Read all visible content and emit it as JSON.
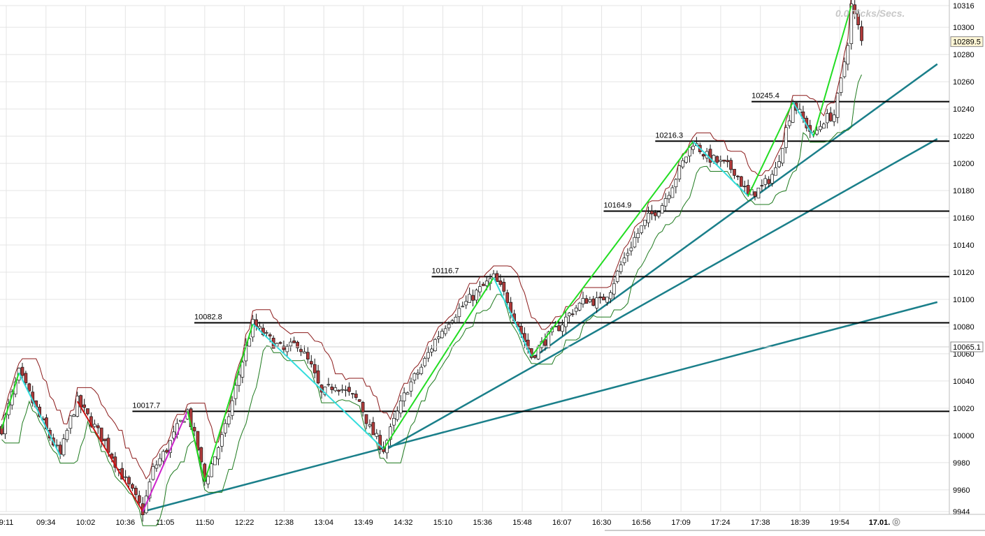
{
  "chart_data": {
    "type": "candlestick",
    "watermark": "0.0 Ticks/Secs.",
    "ylim": [
      9944,
      10316
    ],
    "y_ticks": [
      9944,
      9960,
      9980,
      10000,
      10020,
      10040,
      10060,
      10080,
      10100,
      10120,
      10140,
      10160,
      10180,
      10200,
      10220,
      10240,
      10260,
      10280,
      10300,
      10316
    ],
    "x_tick_labels": [
      "9:11",
      "09:34",
      "10:02",
      "10:36",
      "11:05",
      "11:50",
      "12:22",
      "12:38",
      "13:04",
      "13:49",
      "14:32",
      "15:10",
      "15:36",
      "15:48",
      "16:07",
      "16:30",
      "16:56",
      "17:09",
      "17:24",
      "17:38",
      "18:39",
      "19:54",
      "17.01."
    ],
    "x_end_badge": "0",
    "price_boxes": [
      {
        "label": "10289.5",
        "value": 10289.5,
        "style": "last-price"
      },
      {
        "label": "10065.1",
        "value": 10065.1,
        "style": "marker"
      }
    ],
    "horizontal_levels": [
      {
        "label": "10017.7",
        "value": 10017.7,
        "from_bar": 38
      },
      {
        "label": "10082.8",
        "value": 10082.8,
        "from_bar": 56
      },
      {
        "label": "10116.7",
        "value": 10116.7,
        "from_bar": 125
      },
      {
        "label": "10164.9",
        "value": 10164.9,
        "from_bar": 175
      },
      {
        "label": "10216.3",
        "value": 10216.3,
        "from_bar": 190
      },
      {
        "label": "10245.4",
        "value": 10245.4,
        "from_bar": 218
      }
    ],
    "trend_lines": [
      {
        "from": [
          41,
          9944
        ],
        "to": [
          272,
          10098
        ]
      },
      {
        "from": [
          112,
          9990
        ],
        "to": [
          272,
          10218
        ]
      },
      {
        "from": [
          155,
          10058
        ],
        "to": [
          272,
          10273
        ]
      }
    ],
    "zigzag_segments": [
      {
        "from": [
          0,
          10005
        ],
        "to": [
          5,
          10046
        ],
        "color": "#22dd22"
      },
      {
        "from": [
          5,
          10046
        ],
        "to": [
          17,
          9985
        ],
        "color": "#33dddd"
      },
      {
        "from": [
          22,
          10025
        ],
        "to": [
          41,
          9944
        ],
        "color": "#cc1111"
      },
      {
        "from": [
          41,
          9944
        ],
        "to": [
          54,
          10018
        ],
        "color": "#cc22cc"
      },
      {
        "from": [
          54,
          10018
        ],
        "to": [
          59,
          9966
        ],
        "color": "#22dd22"
      },
      {
        "from": [
          59,
          9966
        ],
        "to": [
          73,
          10082
        ],
        "color": "#22dd22"
      },
      {
        "from": [
          73,
          10082
        ],
        "to": [
          111,
          9990
        ],
        "color": "#33dddd"
      },
      {
        "from": [
          111,
          9990
        ],
        "to": [
          143,
          10116
        ],
        "color": "#22dd22"
      },
      {
        "from": [
          143,
          10116
        ],
        "to": [
          154,
          10058
        ],
        "color": "#33dddd"
      },
      {
        "from": [
          154,
          10058
        ],
        "to": [
          201,
          10216
        ],
        "color": "#22dd22"
      },
      {
        "from": [
          201,
          10216
        ],
        "to": [
          217,
          10176
        ],
        "color": "#33dddd"
      },
      {
        "from": [
          217,
          10176
        ],
        "to": [
          230,
          10245
        ],
        "color": "#22dd22"
      },
      {
        "from": [
          230,
          10245
        ],
        "to": [
          236,
          10220
        ],
        "color": "#33dddd"
      },
      {
        "from": [
          236,
          10220
        ],
        "to": [
          247,
          10316
        ],
        "color": "#22dd22"
      }
    ],
    "price_path": [
      [
        0,
        10005
      ],
      [
        5,
        10046
      ],
      [
        8,
        10030
      ],
      [
        12,
        10008
      ],
      [
        17,
        9985
      ],
      [
        20,
        10012
      ],
      [
        22,
        10025
      ],
      [
        26,
        10010
      ],
      [
        30,
        9995
      ],
      [
        34,
        9975
      ],
      [
        38,
        9958
      ],
      [
        41,
        9944
      ],
      [
        44,
        9975
      ],
      [
        48,
        9990
      ],
      [
        51,
        10005
      ],
      [
        54,
        10018
      ],
      [
        57,
        9990
      ],
      [
        59,
        9966
      ],
      [
        62,
        9985
      ],
      [
        65,
        10005
      ],
      [
        68,
        10035
      ],
      [
        71,
        10065
      ],
      [
        73,
        10082
      ],
      [
        78,
        10070
      ],
      [
        82,
        10062
      ],
      [
        86,
        10068
      ],
      [
        90,
        10050
      ],
      [
        93,
        10030
      ],
      [
        97,
        10038
      ],
      [
        101,
        10030
      ],
      [
        104,
        10025
      ],
      [
        107,
        10005
      ],
      [
        111,
        9990
      ],
      [
        114,
        10010
      ],
      [
        118,
        10035
      ],
      [
        122,
        10050
      ],
      [
        126,
        10070
      ],
      [
        130,
        10085
      ],
      [
        134,
        10095
      ],
      [
        138,
        10105
      ],
      [
        143,
        10116
      ],
      [
        147,
        10100
      ],
      [
        151,
        10075
      ],
      [
        154,
        10058
      ],
      [
        158,
        10070
      ],
      [
        162,
        10080
      ],
      [
        166,
        10092
      ],
      [
        170,
        10100
      ],
      [
        174,
        10098
      ],
      [
        177,
        10108
      ],
      [
        180,
        10125
      ],
      [
        184,
        10145
      ],
      [
        188,
        10160
      ],
      [
        192,
        10170
      ],
      [
        196,
        10190
      ],
      [
        201,
        10216
      ],
      [
        205,
        10205
      ],
      [
        209,
        10200
      ],
      [
        213,
        10195
      ],
      [
        217,
        10176
      ],
      [
        221,
        10182
      ],
      [
        225,
        10195
      ],
      [
        228,
        10225
      ],
      [
        230,
        10245
      ],
      [
        233,
        10232
      ],
      [
        236,
        10220
      ],
      [
        239,
        10232
      ],
      [
        242,
        10236
      ],
      [
        244,
        10260
      ],
      [
        246,
        10290
      ],
      [
        247,
        10316
      ],
      [
        249,
        10300
      ],
      [
        250,
        10289.5
      ]
    ],
    "grid": true,
    "n_bars": 276
  }
}
